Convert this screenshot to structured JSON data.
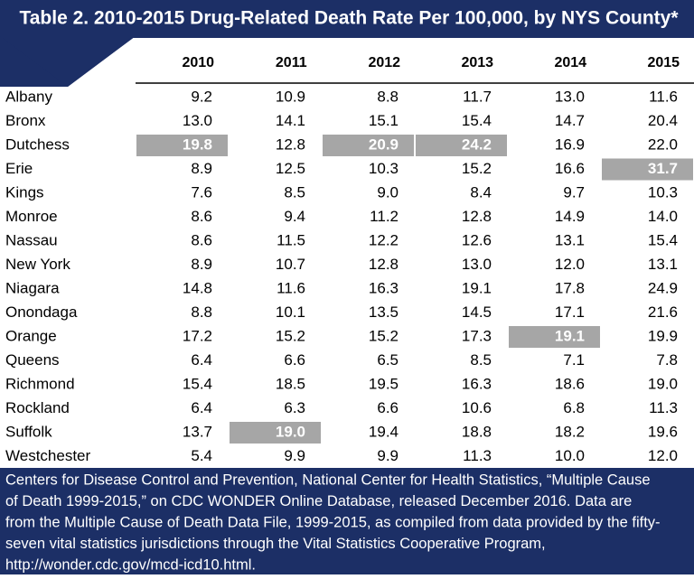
{
  "header": {
    "title": "Table 2. 2010-2015 Drug-Related Death Rate Per 100,000, by NYS County*"
  },
  "table": {
    "columns": [
      "2010",
      "2011",
      "2012",
      "2013",
      "2014",
      "2015"
    ],
    "rows": [
      {
        "name": "Albany",
        "values": [
          "9.2",
          "10.9",
          "8.8",
          "11.7",
          "13.0",
          "11.6"
        ],
        "highlighted": []
      },
      {
        "name": "Bronx",
        "values": [
          "13.0",
          "14.1",
          "15.1",
          "15.4",
          "14.7",
          "20.4"
        ],
        "highlighted": []
      },
      {
        "name": "Dutchess",
        "values": [
          "19.8",
          "12.8",
          "20.9",
          "24.2",
          "16.9",
          "22.0"
        ],
        "highlighted": [
          0,
          2,
          3
        ]
      },
      {
        "name": "Erie",
        "values": [
          "8.9",
          "12.5",
          "10.3",
          "15.2",
          "16.6",
          "31.7"
        ],
        "highlighted": [
          5
        ]
      },
      {
        "name": "Kings",
        "values": [
          "7.6",
          "8.5",
          "9.0",
          "8.4",
          "9.7",
          "10.3"
        ],
        "highlighted": []
      },
      {
        "name": "Monroe",
        "values": [
          "8.6",
          "9.4",
          "11.2",
          "12.8",
          "14.9",
          "14.0"
        ],
        "highlighted": []
      },
      {
        "name": "Nassau",
        "values": [
          "8.6",
          "11.5",
          "12.2",
          "12.6",
          "13.1",
          "15.4"
        ],
        "highlighted": []
      },
      {
        "name": "New York",
        "values": [
          "8.9",
          "10.7",
          "12.8",
          "13.0",
          "12.0",
          "13.1"
        ],
        "highlighted": []
      },
      {
        "name": "Niagara",
        "values": [
          "14.8",
          "11.6",
          "16.3",
          "19.1",
          "17.8",
          "24.9"
        ],
        "highlighted": []
      },
      {
        "name": "Onondaga",
        "values": [
          "8.8",
          "10.1",
          "13.5",
          "14.5",
          "17.1",
          "21.6"
        ],
        "highlighted": []
      },
      {
        "name": "Orange",
        "values": [
          "17.2",
          "15.2",
          "15.2",
          "17.3",
          "19.1",
          "19.9"
        ],
        "highlighted": [
          4
        ]
      },
      {
        "name": "Queens",
        "values": [
          "6.4",
          "6.6",
          "6.5",
          "8.5",
          "7.1",
          "7.8"
        ],
        "highlighted": []
      },
      {
        "name": "Richmond",
        "values": [
          "15.4",
          "18.5",
          "19.5",
          "16.3",
          "18.6",
          "19.0"
        ],
        "highlighted": []
      },
      {
        "name": "Rockland",
        "values": [
          "6.4",
          "6.3",
          "6.6",
          "10.6",
          "6.8",
          "11.3"
        ],
        "highlighted": []
      },
      {
        "name": "Suffolk",
        "values": [
          "13.7",
          "19.0",
          "19.4",
          "18.8",
          "18.2",
          "19.6"
        ],
        "highlighted": [
          1
        ]
      },
      {
        "name": "Westchester",
        "values": [
          "5.4",
          "9.9",
          "9.9",
          "11.3",
          "10.0",
          "12.0"
        ],
        "highlighted": []
      }
    ]
  },
  "footer": {
    "lines": [
      "Centers for Disease Control and Prevention, National Center for Health Statistics, “Multiple Cause",
      "of Death 1999-2015,” on CDC WONDER Online Database, released December 2016. Data are",
      "from the Multiple Cause of Death Data File, 1999-2015, as compiled from data provided by the fifty-",
      "seven vital statistics jurisdictions through the Vital Statistics Cooperative Program,",
      "http://wonder.cdc.gov/mcd-icd10.html."
    ]
  }
}
